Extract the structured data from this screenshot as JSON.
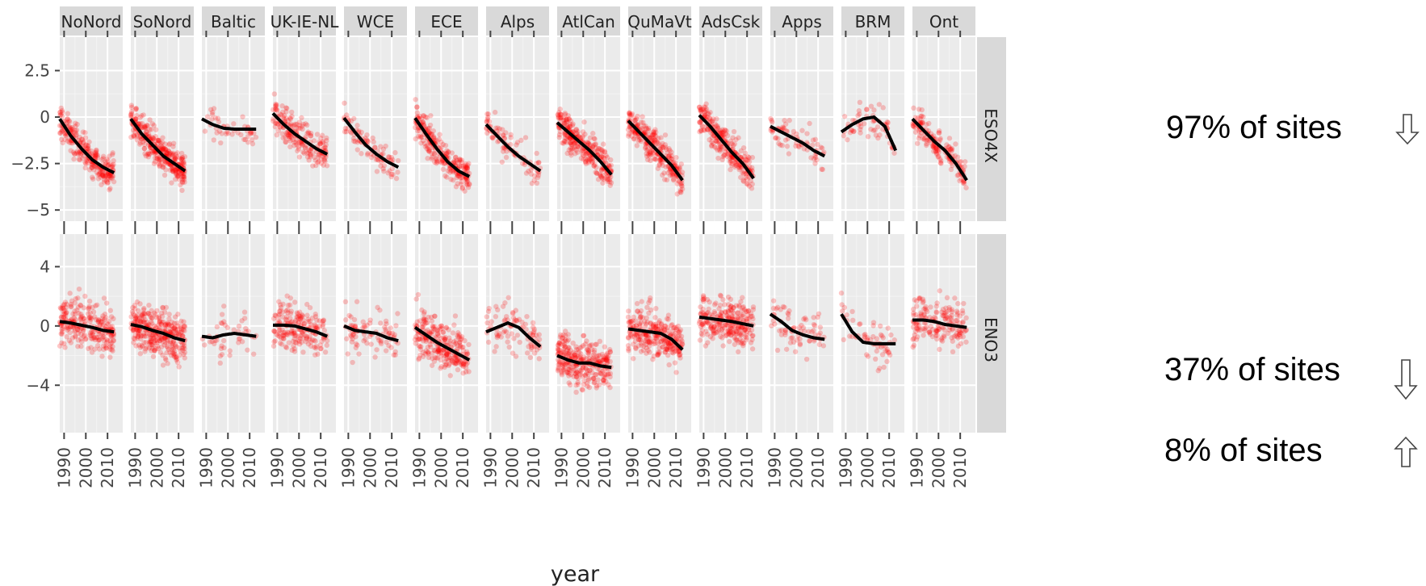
{
  "chart_data": {
    "type": "scatter",
    "xlabel": "year",
    "ylabel": "",
    "xlim": [
      1988,
      2017
    ],
    "x_ticks": [
      1990,
      2000,
      2010
    ],
    "x_tick_labels": [
      "1990",
      "2000",
      "2010"
    ],
    "grid": true,
    "point_color": "#ff0000",
    "trend_color": "#000000",
    "panel_bg": "#ebebeb",
    "strip_bg": "#d9d9d9",
    "columns": [
      "NoNord",
      "SoNord",
      "Baltic",
      "UK-IE-NL",
      "WCE",
      "ECE",
      "Alps",
      "AtlCan",
      "QuMaVt",
      "AdsCsk",
      "Apps",
      "BRM",
      "Ont"
    ],
    "rows": [
      {
        "name": "ESO4X",
        "ylim": [
          -5.6,
          4.3
        ],
        "y_ticks": [
          2.5,
          0,
          -2.5,
          -5
        ],
        "y_tick_labels": [
          "2.5",
          "0",
          "−2.5",
          "−5"
        ],
        "trends": [
          {
            "region": "NoNord",
            "x": [
              1988,
              1993,
              1998,
              2003,
              2008,
              2013
            ],
            "y": [
              -0.1,
              -1.0,
              -1.7,
              -2.3,
              -2.7,
              -3.0
            ]
          },
          {
            "region": "SoNord",
            "x": [
              1988,
              1993,
              1998,
              2003,
              2008,
              2013
            ],
            "y": [
              -0.1,
              -0.9,
              -1.5,
              -2.1,
              -2.5,
              -2.9
            ]
          },
          {
            "region": "Baltic",
            "x": [
              1988,
              1993,
              1998,
              2003,
              2008,
              2013
            ],
            "y": [
              -0.1,
              -0.4,
              -0.6,
              -0.65,
              -0.65,
              -0.65
            ]
          },
          {
            "region": "UK-IE-NL",
            "x": [
              1988,
              1993,
              1998,
              2003,
              2008,
              2013
            ],
            "y": [
              0.2,
              -0.4,
              -0.9,
              -1.3,
              -1.7,
              -2.0
            ]
          },
          {
            "region": "WCE",
            "x": [
              1988,
              1993,
              1998,
              2003,
              2008,
              2013
            ],
            "y": [
              -0.05,
              -0.8,
              -1.5,
              -2.0,
              -2.4,
              -2.7
            ]
          },
          {
            "region": "ECE",
            "x": [
              1988,
              1993,
              1998,
              2003,
              2008,
              2013
            ],
            "y": [
              -0.05,
              -0.9,
              -1.7,
              -2.4,
              -2.9,
              -3.2
            ]
          },
          {
            "region": "Alps",
            "x": [
              1988,
              1993,
              1998,
              2003,
              2008,
              2013
            ],
            "y": [
              -0.4,
              -1.0,
              -1.6,
              -2.1,
              -2.5,
              -2.9
            ]
          },
          {
            "region": "AtlCan",
            "x": [
              1988,
              1993,
              1998,
              2003,
              2008,
              2013
            ],
            "y": [
              -0.3,
              -0.8,
              -1.3,
              -1.8,
              -2.4,
              -3.1
            ]
          },
          {
            "region": "QuMaVt",
            "x": [
              1988,
              1993,
              1998,
              2003,
              2008,
              2013
            ],
            "y": [
              -0.2,
              -0.8,
              -1.4,
              -2.0,
              -2.6,
              -3.4
            ]
          },
          {
            "region": "AdsCsk",
            "x": [
              1988,
              1993,
              1998,
              2003,
              2008,
              2013
            ],
            "y": [
              0.1,
              -0.5,
              -1.2,
              -1.9,
              -2.5,
              -3.3
            ]
          },
          {
            "region": "Apps",
            "x": [
              1988,
              1993,
              1998,
              2003,
              2008,
              2013
            ],
            "y": [
              -0.5,
              -0.8,
              -1.1,
              -1.4,
              -1.8,
              -2.1
            ]
          },
          {
            "region": "BRM",
            "x": [
              1988,
              1993,
              1998,
              2003,
              2008,
              2013
            ],
            "y": [
              -0.8,
              -0.4,
              -0.1,
              0.0,
              -0.5,
              -1.8
            ]
          },
          {
            "region": "Ont",
            "x": [
              1988,
              1993,
              1998,
              2003,
              2008,
              2013
            ],
            "y": [
              -0.1,
              -0.7,
              -1.3,
              -1.8,
              -2.5,
              -3.4
            ]
          }
        ]
      },
      {
        "name": "ENO3",
        "ylim": [
          -7.2,
          6.2
        ],
        "y_ticks": [
          4,
          0,
          -4
        ],
        "y_tick_labels": [
          "4",
          "0",
          "−4"
        ],
        "trends": [
          {
            "region": "NoNord",
            "x": [
              1988,
              1993,
              1998,
              2003,
              2008,
              2013
            ],
            "y": [
              0.3,
              0.2,
              0.05,
              -0.1,
              -0.3,
              -0.4
            ]
          },
          {
            "region": "SoNord",
            "x": [
              1988,
              1993,
              1998,
              2003,
              2008,
              2013
            ],
            "y": [
              0.1,
              -0.05,
              -0.3,
              -0.5,
              -0.8,
              -1.0
            ]
          },
          {
            "region": "Baltic",
            "x": [
              1988,
              1993,
              1998,
              2003,
              2008,
              2013
            ],
            "y": [
              -0.7,
              -0.8,
              -0.6,
              -0.5,
              -0.6,
              -0.7
            ]
          },
          {
            "region": "UK-IE-NL",
            "x": [
              1988,
              1993,
              1998,
              2003,
              2008,
              2013
            ],
            "y": [
              0.05,
              0.05,
              0.0,
              -0.2,
              -0.4,
              -0.7
            ]
          },
          {
            "region": "WCE",
            "x": [
              1988,
              1993,
              1998,
              2003,
              2008,
              2013
            ],
            "y": [
              0.0,
              -0.3,
              -0.4,
              -0.5,
              -0.8,
              -1.0
            ]
          },
          {
            "region": "ECE",
            "x": [
              1988,
              1993,
              1998,
              2003,
              2008,
              2013
            ],
            "y": [
              -0.1,
              -0.6,
              -1.1,
              -1.5,
              -1.9,
              -2.3
            ]
          },
          {
            "region": "Alps",
            "x": [
              1988,
              1993,
              1998,
              2003,
              2008,
              2013
            ],
            "y": [
              -0.4,
              -0.1,
              0.2,
              -0.1,
              -0.8,
              -1.4
            ]
          },
          {
            "region": "AtlCan",
            "x": [
              1988,
              1993,
              1998,
              2003,
              2008,
              2013
            ],
            "y": [
              -2.0,
              -2.3,
              -2.5,
              -2.5,
              -2.7,
              -2.8
            ]
          },
          {
            "region": "QuMaVt",
            "x": [
              1988,
              1993,
              1998,
              2003,
              2008,
              2013
            ],
            "y": [
              -0.2,
              -0.3,
              -0.4,
              -0.5,
              -0.9,
              -1.6
            ]
          },
          {
            "region": "AdsCsk",
            "x": [
              1988,
              1993,
              1998,
              2003,
              2008,
              2013
            ],
            "y": [
              0.6,
              0.5,
              0.4,
              0.3,
              0.15,
              0.0
            ]
          },
          {
            "region": "Apps",
            "x": [
              1988,
              1993,
              1998,
              2003,
              2008,
              2013
            ],
            "y": [
              0.8,
              0.3,
              -0.3,
              -0.6,
              -0.8,
              -0.9
            ]
          },
          {
            "region": "BRM",
            "x": [
              1988,
              1993,
              1998,
              2003,
              2008,
              2013
            ],
            "y": [
              0.8,
              -0.4,
              -1.1,
              -1.2,
              -1.2,
              -1.2
            ]
          },
          {
            "region": "Ont",
            "x": [
              1988,
              1993,
              1998,
              2003,
              2008,
              2013
            ],
            "y": [
              0.4,
              0.4,
              0.3,
              0.1,
              0.0,
              -0.1
            ]
          }
        ],
        "notes_below": true
      }
    ],
    "annotations": [
      {
        "text": "97% of sites",
        "row": "ESO4X",
        "direction": "down"
      },
      {
        "text": "37% of sites",
        "row": "ENO3",
        "direction": "down"
      },
      {
        "text": "8% of sites",
        "row": "ENO3",
        "direction": "up"
      }
    ]
  }
}
